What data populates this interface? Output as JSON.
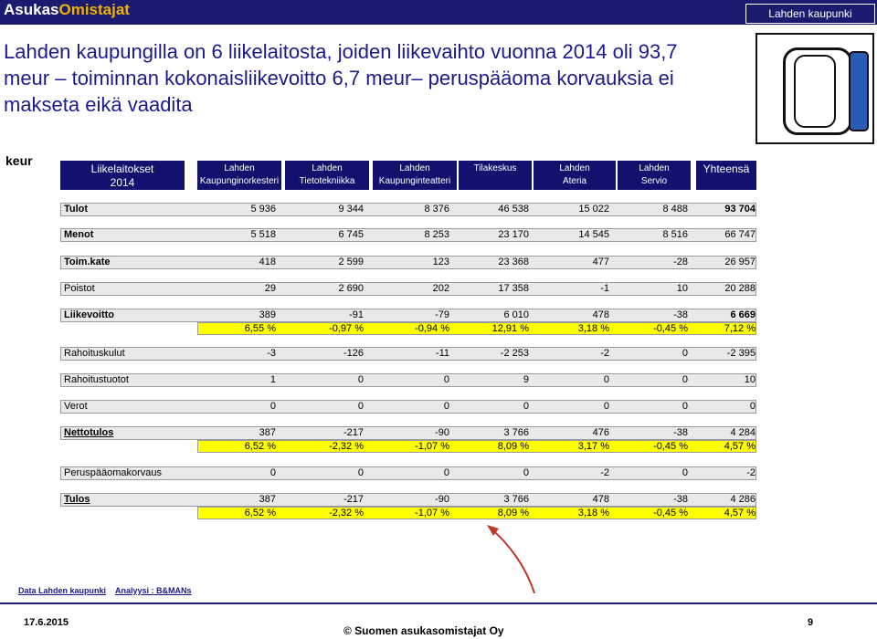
{
  "header": {
    "brand_a": "Asukas",
    "brand_b": "Omistajat",
    "city": "Lahden kaupunki"
  },
  "title": "Lahden kaupungilla on 6 liikelaitosta, joiden liikevaihto vuonna 2014 oli 93,7 meur – toiminnan kokonaisliikevoitto 6,7 meur– peruspääoma korvauksia ei makseta eikä vaadita",
  "unit": "keur",
  "columns": [
    {
      "l1": "Liikelaitokset",
      "l2": "2014"
    },
    {
      "l1": "Lahden",
      "l2": "Kaupunginorkesteri"
    },
    {
      "l1": "Lahden",
      "l2": "Tietotekniikka"
    },
    {
      "l1": "Lahden",
      "l2": "Kaupunginteatteri"
    },
    {
      "l1": "Tilakeskus",
      "l2": ""
    },
    {
      "l1": "Lahden",
      "l2": "Ateria"
    },
    {
      "l1": "Lahden",
      "l2": "Servio"
    },
    {
      "l1": "Yhteensä",
      "l2": ""
    }
  ],
  "rows": [
    {
      "label": "Tulot",
      "values": [
        "5 936",
        "9 344",
        "8 376",
        "46 538",
        "15 022",
        "8 488",
        "93 704"
      ]
    },
    {
      "label": "Menot",
      "values": [
        "5 518",
        "6 745",
        "8 253",
        "23 170",
        "14 545",
        "8 516",
        "66 747"
      ]
    },
    {
      "label": "Toim.kate",
      "values": [
        "418",
        "2 599",
        "123",
        "23 368",
        "477",
        "-28",
        "26 957"
      ]
    },
    {
      "label": "Poistot",
      "values": [
        "29",
        "2 690",
        "202",
        "17 358",
        "-1",
        "10",
        "20 288"
      ]
    },
    {
      "label": "Liikevoitto",
      "values": [
        "389",
        "-91",
        "-79",
        "6 010",
        "478",
        "-38",
        "6 669"
      ],
      "pct": [
        "6,55 %",
        "-0,97 %",
        "-0,94 %",
        "12,91 %",
        "3,18 %",
        "-0,45 %",
        "7,12 %"
      ]
    },
    {
      "label": "Rahoituskulut",
      "values": [
        "-3",
        "-126",
        "-11",
        "-2 253",
        "-2",
        "0",
        "-2 395"
      ]
    },
    {
      "label": "Rahoitustuotot",
      "values": [
        "1",
        "0",
        "0",
        "9",
        "0",
        "0",
        "10"
      ]
    },
    {
      "label": "Verot",
      "values": [
        "0",
        "0",
        "0",
        "0",
        "0",
        "0",
        "0"
      ]
    },
    {
      "label": "Nettotulos",
      "values": [
        "387",
        "-217",
        "-90",
        "3 766",
        "476",
        "-38",
        "4 284"
      ],
      "pct": [
        "6,52 %",
        "-2,32 %",
        "-1,07 %",
        "8,09 %",
        "3,17 %",
        "-0,45 %",
        "4,57 %"
      ]
    },
    {
      "label": "Peruspääomakorvaus",
      "values": [
        "0",
        "0",
        "0",
        "0",
        "-2",
        "0",
        "-2"
      ]
    },
    {
      "label": "Tulos",
      "values": [
        "387",
        "-217",
        "-90",
        "3 766",
        "478",
        "-38",
        "4 286"
      ],
      "pct": [
        "6,52 %",
        "-2,32 %",
        "-1,07 %",
        "8,09 %",
        "3,18 %",
        "-0,45 %",
        "4,57 %"
      ]
    }
  ],
  "footer": {
    "source": "Data Lahden kaupunki",
    "analysis": "Analyysi : B&MANs",
    "date": "17.6.2015",
    "copyright": "© Suomen asukasomistajat Oy",
    "page": "9"
  },
  "colors": {
    "navy": "#12126e",
    "title": "#1a1a8c",
    "highlight": "#ffff00",
    "arrow": "#c0392b"
  }
}
